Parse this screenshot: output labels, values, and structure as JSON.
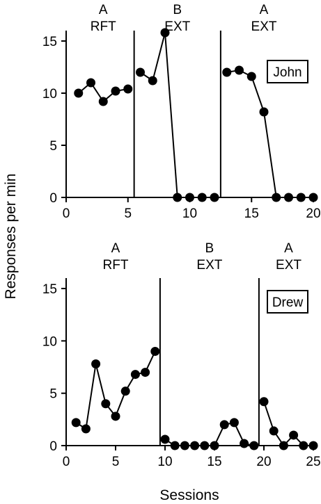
{
  "chart_data": {
    "type": "line",
    "xlabel": "Sessions",
    "ylabel": "Responses per min",
    "panels": [
      {
        "subject": "John",
        "xlim": [
          0,
          20
        ],
        "ylim": [
          0,
          16
        ],
        "xticks": [
          0,
          5,
          10,
          15,
          20
        ],
        "yticks": [
          0,
          5,
          10,
          15
        ],
        "phase_boundaries": [
          5.5,
          12.5
        ],
        "phases": [
          {
            "line1": "A",
            "line2": "RFT",
            "x_center": 3
          },
          {
            "line1": "B",
            "line2": "EXT",
            "x_center": 9
          },
          {
            "line1": "A",
            "line2": "EXT",
            "x_center": 16
          }
        ],
        "segments": [
          {
            "x": [
              1,
              2,
              3,
              4,
              5
            ],
            "y": [
              10,
              11,
              9.2,
              10.2,
              10.4
            ]
          },
          {
            "x": [
              6,
              7,
              8,
              9,
              10,
              11,
              12
            ],
            "y": [
              12,
              11.2,
              15.8,
              0,
              0,
              0,
              0
            ]
          },
          {
            "x": [
              13,
              14,
              15,
              16,
              17,
              18,
              19,
              20
            ],
            "y": [
              12,
              12.2,
              11.6,
              8.2,
              0,
              0,
              0,
              0
            ]
          }
        ]
      },
      {
        "subject": "Drew",
        "xlim": [
          0,
          25
        ],
        "ylim": [
          0,
          16
        ],
        "xticks": [
          0,
          5,
          10,
          15,
          20,
          25
        ],
        "yticks": [
          0,
          5,
          10,
          15
        ],
        "phase_boundaries": [
          9.5,
          19.5
        ],
        "phases": [
          {
            "line1": "A",
            "line2": "RFT",
            "x_center": 5
          },
          {
            "line1": "B",
            "line2": "EXT",
            "x_center": 14.5
          },
          {
            "line1": "A",
            "line2": "EXT",
            "x_center": 22.5
          }
        ],
        "segments": [
          {
            "x": [
              1,
              2,
              3,
              4,
              5,
              6,
              7,
              8,
              9
            ],
            "y": [
              2.2,
              1.6,
              7.8,
              4,
              2.8,
              5.2,
              6.8,
              7,
              9
            ]
          },
          {
            "x": [
              10,
              11,
              12,
              13,
              14,
              15,
              16,
              17,
              18,
              19
            ],
            "y": [
              0.6,
              0,
              0,
              0,
              0,
              0,
              2,
              2.2,
              0.2,
              0
            ]
          },
          {
            "x": [
              20,
              21,
              22,
              23,
              24,
              25
            ],
            "y": [
              4.2,
              1.4,
              0,
              1,
              0,
              0
            ]
          }
        ]
      }
    ]
  }
}
